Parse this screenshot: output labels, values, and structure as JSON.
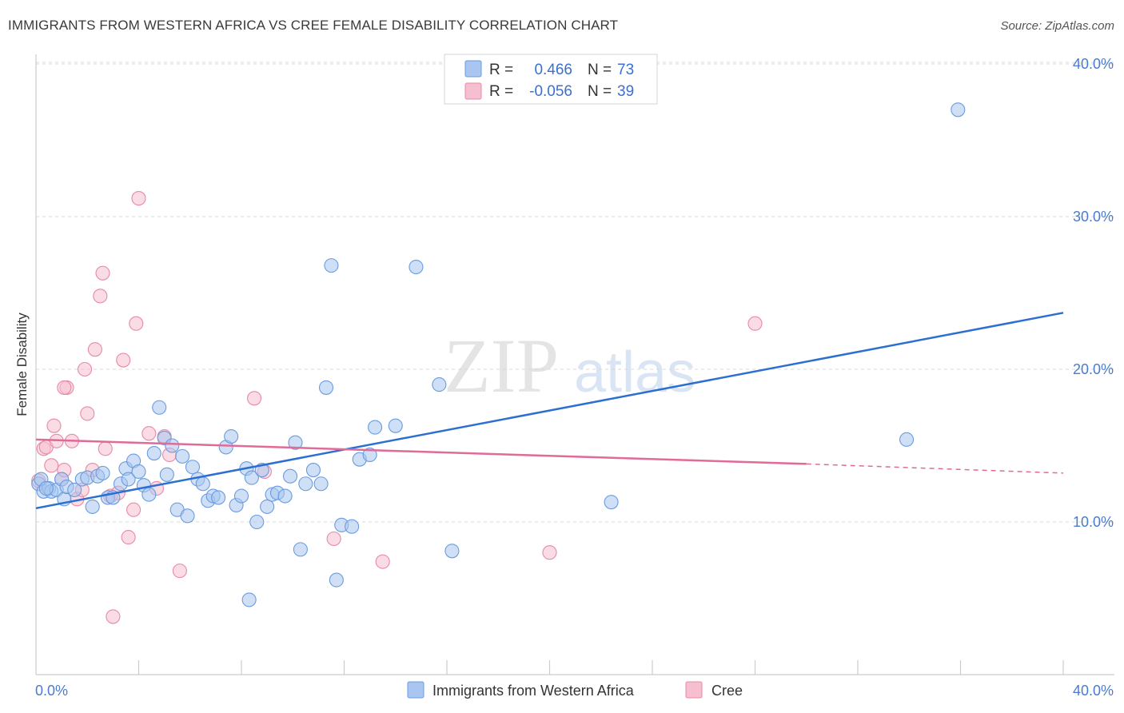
{
  "header": {
    "title": "IMMIGRANTS FROM WESTERN AFRICA VS CREE FEMALE DISABILITY CORRELATION CHART",
    "source": "Source: ZipAtlas.com"
  },
  "watermark": {
    "zip": "ZIP",
    "atlas": "atlas"
  },
  "colors": {
    "blue_fill": "#a8c6ef",
    "blue_stroke": "#6a9be0",
    "blue_line": "#2d6fd1",
    "pink_fill": "#f6bfd0",
    "pink_stroke": "#e889a8",
    "pink_line": "#e06a98",
    "grid": "#d8d8d8",
    "tick_text": "#4a7bd0"
  },
  "legend": {
    "rows": [
      {
        "r_label": "R =",
        "r_value": "0.466",
        "n_label": "N =",
        "n_value": "73"
      },
      {
        "r_label": "R =",
        "r_value": "-0.056",
        "n_label": "N =",
        "n_value": "39"
      }
    ]
  },
  "chart_data": {
    "type": "scatter",
    "title": "IMMIGRANTS FROM WESTERN AFRICA VS CREE FEMALE DISABILITY CORRELATION CHART",
    "xlabel": "",
    "ylabel": "Female Disability",
    "xlim": [
      0,
      40
    ],
    "ylim": [
      0,
      40
    ],
    "y_ticks": [
      10,
      20,
      30,
      40
    ],
    "y_tick_labels": [
      "10.0%",
      "20.0%",
      "30.0%",
      "40.0%"
    ],
    "x_tick_labels": [
      "0.0%",
      "40.0%"
    ],
    "series": [
      {
        "name": "Immigrants from Western Africa",
        "r": 0.466,
        "n": 73,
        "trend": {
          "x0": 0,
          "y0": 10.9,
          "x1": 40,
          "y1": 23.7
        },
        "points": [
          [
            0.1,
            12.5
          ],
          [
            0.2,
            12.8
          ],
          [
            0.3,
            12.0
          ],
          [
            0.5,
            12.2
          ],
          [
            0.6,
            12.0
          ],
          [
            0.8,
            12.1
          ],
          [
            1.0,
            12.8
          ],
          [
            1.1,
            11.5
          ],
          [
            1.2,
            12.3
          ],
          [
            1.5,
            12.1
          ],
          [
            1.8,
            12.8
          ],
          [
            2.0,
            12.9
          ],
          [
            2.2,
            11.0
          ],
          [
            2.4,
            13.0
          ],
          [
            2.6,
            13.2
          ],
          [
            2.8,
            11.6
          ],
          [
            3.0,
            11.6
          ],
          [
            3.3,
            12.5
          ],
          [
            3.5,
            13.5
          ],
          [
            3.6,
            12.8
          ],
          [
            3.8,
            14.0
          ],
          [
            4.0,
            13.3
          ],
          [
            4.2,
            12.4
          ],
          [
            4.4,
            11.8
          ],
          [
            4.6,
            14.5
          ],
          [
            4.8,
            17.5
          ],
          [
            5.0,
            15.5
          ],
          [
            5.1,
            13.1
          ],
          [
            5.3,
            15.0
          ],
          [
            5.5,
            10.8
          ],
          [
            5.7,
            14.3
          ],
          [
            5.9,
            10.4
          ],
          [
            6.1,
            13.6
          ],
          [
            6.3,
            12.8
          ],
          [
            6.5,
            12.5
          ],
          [
            6.7,
            11.4
          ],
          [
            6.9,
            11.7
          ],
          [
            7.1,
            11.6
          ],
          [
            7.4,
            14.9
          ],
          [
            7.6,
            15.6
          ],
          [
            7.8,
            11.1
          ],
          [
            8.0,
            11.7
          ],
          [
            8.2,
            13.5
          ],
          [
            8.4,
            12.9
          ],
          [
            8.6,
            10.0
          ],
          [
            8.8,
            13.4
          ],
          [
            9.0,
            11.0
          ],
          [
            9.2,
            11.8
          ],
          [
            9.4,
            11.9
          ],
          [
            9.7,
            11.7
          ],
          [
            9.9,
            13.0
          ],
          [
            10.1,
            15.2
          ],
          [
            10.3,
            8.2
          ],
          [
            10.5,
            12.5
          ],
          [
            10.8,
            13.4
          ],
          [
            11.1,
            12.5
          ],
          [
            11.3,
            18.8
          ],
          [
            11.5,
            26.8
          ],
          [
            11.7,
            6.2
          ],
          [
            11.9,
            9.8
          ],
          [
            12.3,
            9.7
          ],
          [
            12.6,
            14.1
          ],
          [
            13.0,
            14.4
          ],
          [
            13.2,
            16.2
          ],
          [
            14.0,
            16.3
          ],
          [
            8.3,
            4.9
          ],
          [
            14.8,
            26.7
          ],
          [
            15.7,
            19.0
          ],
          [
            16.2,
            8.1
          ],
          [
            22.4,
            11.3
          ],
          [
            33.9,
            15.4
          ],
          [
            35.9,
            37.0
          ],
          [
            0.4,
            12.2
          ]
        ]
      },
      {
        "name": "Cree",
        "r": -0.056,
        "n": 39,
        "trend": {
          "x0": 0,
          "y0": 15.4,
          "x1": 30,
          "y1": 13.8
        },
        "trend_dashed": {
          "x0": 30,
          "y0": 13.8,
          "x1": 40,
          "y1": 13.2
        },
        "points": [
          [
            0.1,
            12.7
          ],
          [
            0.3,
            14.8
          ],
          [
            0.4,
            14.9
          ],
          [
            0.6,
            13.7
          ],
          [
            0.7,
            16.3
          ],
          [
            0.8,
            15.3
          ],
          [
            1.0,
            12.8
          ],
          [
            1.1,
            13.4
          ],
          [
            1.2,
            18.8
          ],
          [
            1.4,
            15.3
          ],
          [
            1.6,
            11.5
          ],
          [
            1.8,
            12.1
          ],
          [
            1.9,
            20.0
          ],
          [
            2.0,
            17.1
          ],
          [
            2.2,
            13.4
          ],
          [
            2.3,
            21.3
          ],
          [
            2.5,
            24.8
          ],
          [
            2.6,
            26.3
          ],
          [
            2.7,
            14.8
          ],
          [
            2.9,
            11.7
          ],
          [
            3.0,
            3.8
          ],
          [
            3.2,
            11.9
          ],
          [
            3.4,
            20.6
          ],
          [
            3.6,
            9.0
          ],
          [
            3.8,
            10.8
          ],
          [
            3.9,
            23.0
          ],
          [
            4.0,
            31.2
          ],
          [
            4.4,
            15.8
          ],
          [
            4.7,
            12.2
          ],
          [
            5.0,
            15.6
          ],
          [
            5.2,
            14.4
          ],
          [
            5.6,
            6.8
          ],
          [
            8.5,
            18.1
          ],
          [
            8.9,
            13.3
          ],
          [
            11.6,
            8.9
          ],
          [
            13.5,
            7.4
          ],
          [
            20.0,
            8.0
          ],
          [
            28.0,
            23.0
          ],
          [
            1.1,
            18.8
          ]
        ]
      }
    ],
    "legend": {
      "placement": "top-center"
    }
  }
}
